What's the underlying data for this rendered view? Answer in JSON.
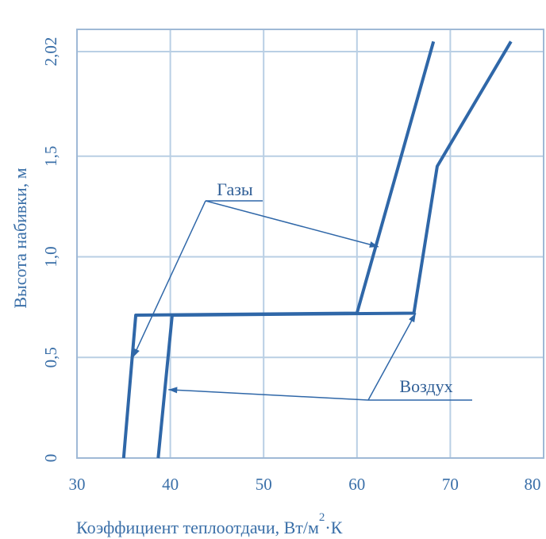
{
  "chart_data": {
    "type": "line",
    "xlabel": "Коэффициент теплоотдачи, Вт/м",
    "xlabel_sup": "2",
    "xlabel_tail": "·К",
    "ylabel": "Высота набивки, м",
    "xlim": [
      30,
      80
    ],
    "ylim": [
      0,
      2.02
    ],
    "xticks": [
      30,
      40,
      50,
      60,
      70,
      80
    ],
    "xtick_labels": [
      "30",
      "40",
      "50",
      "60",
      "70",
      "80"
    ],
    "yticks": [
      0,
      0.5,
      1.0,
      1.5,
      2.02
    ],
    "ytick_labels": [
      "0",
      "0,5",
      "1,0",
      "1,5",
      "2,02"
    ],
    "grid": true,
    "series": [
      {
        "x": [
          35.0,
          36.3,
          60.0,
          68.2
        ],
        "y": [
          0,
          0.71,
          0.72,
          2.07
        ]
      },
      {
        "x": [
          38.7,
          40.2,
          66.1,
          68.6,
          76.5
        ],
        "y": [
          0,
          0.71,
          0.72,
          1.45,
          2.07
        ]
      }
    ],
    "annotations": [
      {
        "text": "Газы",
        "targets": [
          [
            36.0,
            0.5
          ],
          [
            62.3,
            1.05
          ]
        ]
      },
      {
        "text": "Воздух",
        "targets": [
          [
            39.8,
            0.34
          ],
          [
            66.3,
            0.72
          ]
        ]
      }
    ]
  },
  "colors": {
    "line": "#2f67a8",
    "grid": "#b9cfe4",
    "text": "#3a6fa8"
  }
}
